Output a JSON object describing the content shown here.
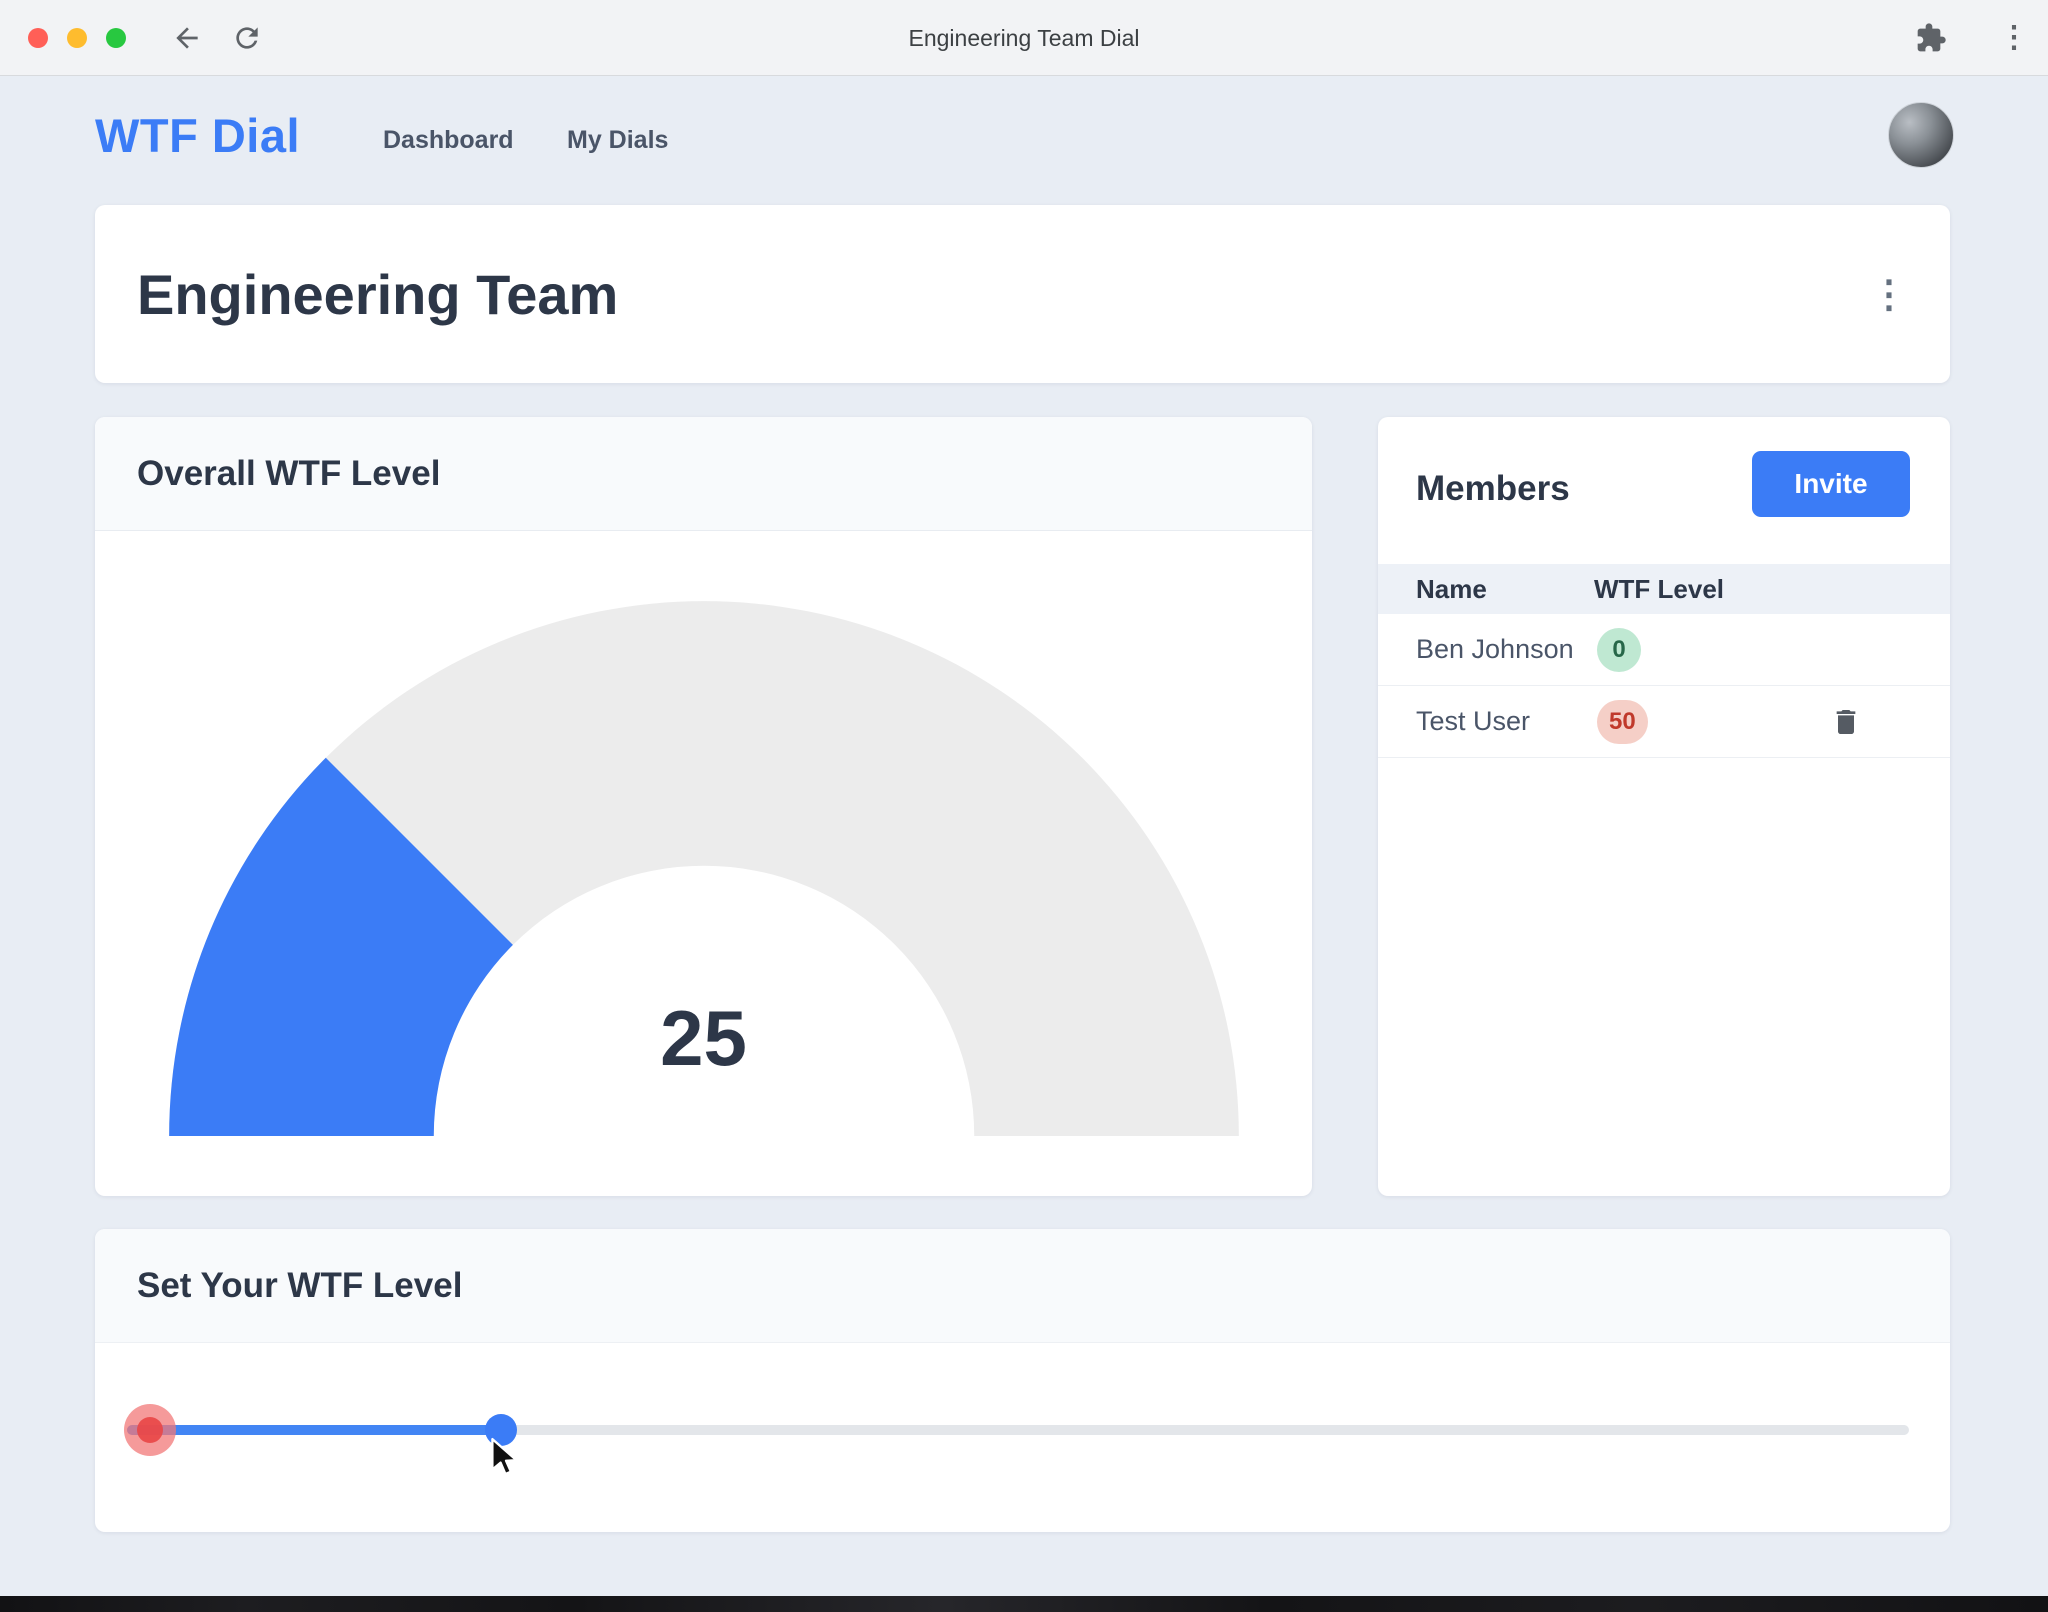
{
  "browser": {
    "window_title": "Engineering Team Dial"
  },
  "nav": {
    "logo": "WTF Dial",
    "links": [
      {
        "label": "Dashboard"
      },
      {
        "label": "My Dials"
      }
    ]
  },
  "team": {
    "title": "Engineering Team"
  },
  "gauge_card": {
    "title": "Overall WTF Level",
    "value": 25,
    "min": 0,
    "max": 100,
    "fill_color": "#3b7cf6",
    "track_color": "#ececec"
  },
  "members_card": {
    "title": "Members",
    "invite_button": "Invite",
    "columns": [
      "Name",
      "WTF Level"
    ],
    "rows": [
      {
        "name": "Ben Johnson",
        "wtf_level": "0",
        "badge": "green"
      },
      {
        "name": "Test User",
        "wtf_level": "50",
        "badge": "red"
      }
    ]
  },
  "set_level_card": {
    "title": "Set Your WTF Level",
    "value": 25,
    "min": 0,
    "max": 100,
    "thumb_position_pct": 21,
    "marker_position_pct": 1.3
  },
  "chart_data": {
    "type": "gauge",
    "title": "Overall WTF Level",
    "value": 25,
    "range": [
      0,
      100
    ]
  }
}
